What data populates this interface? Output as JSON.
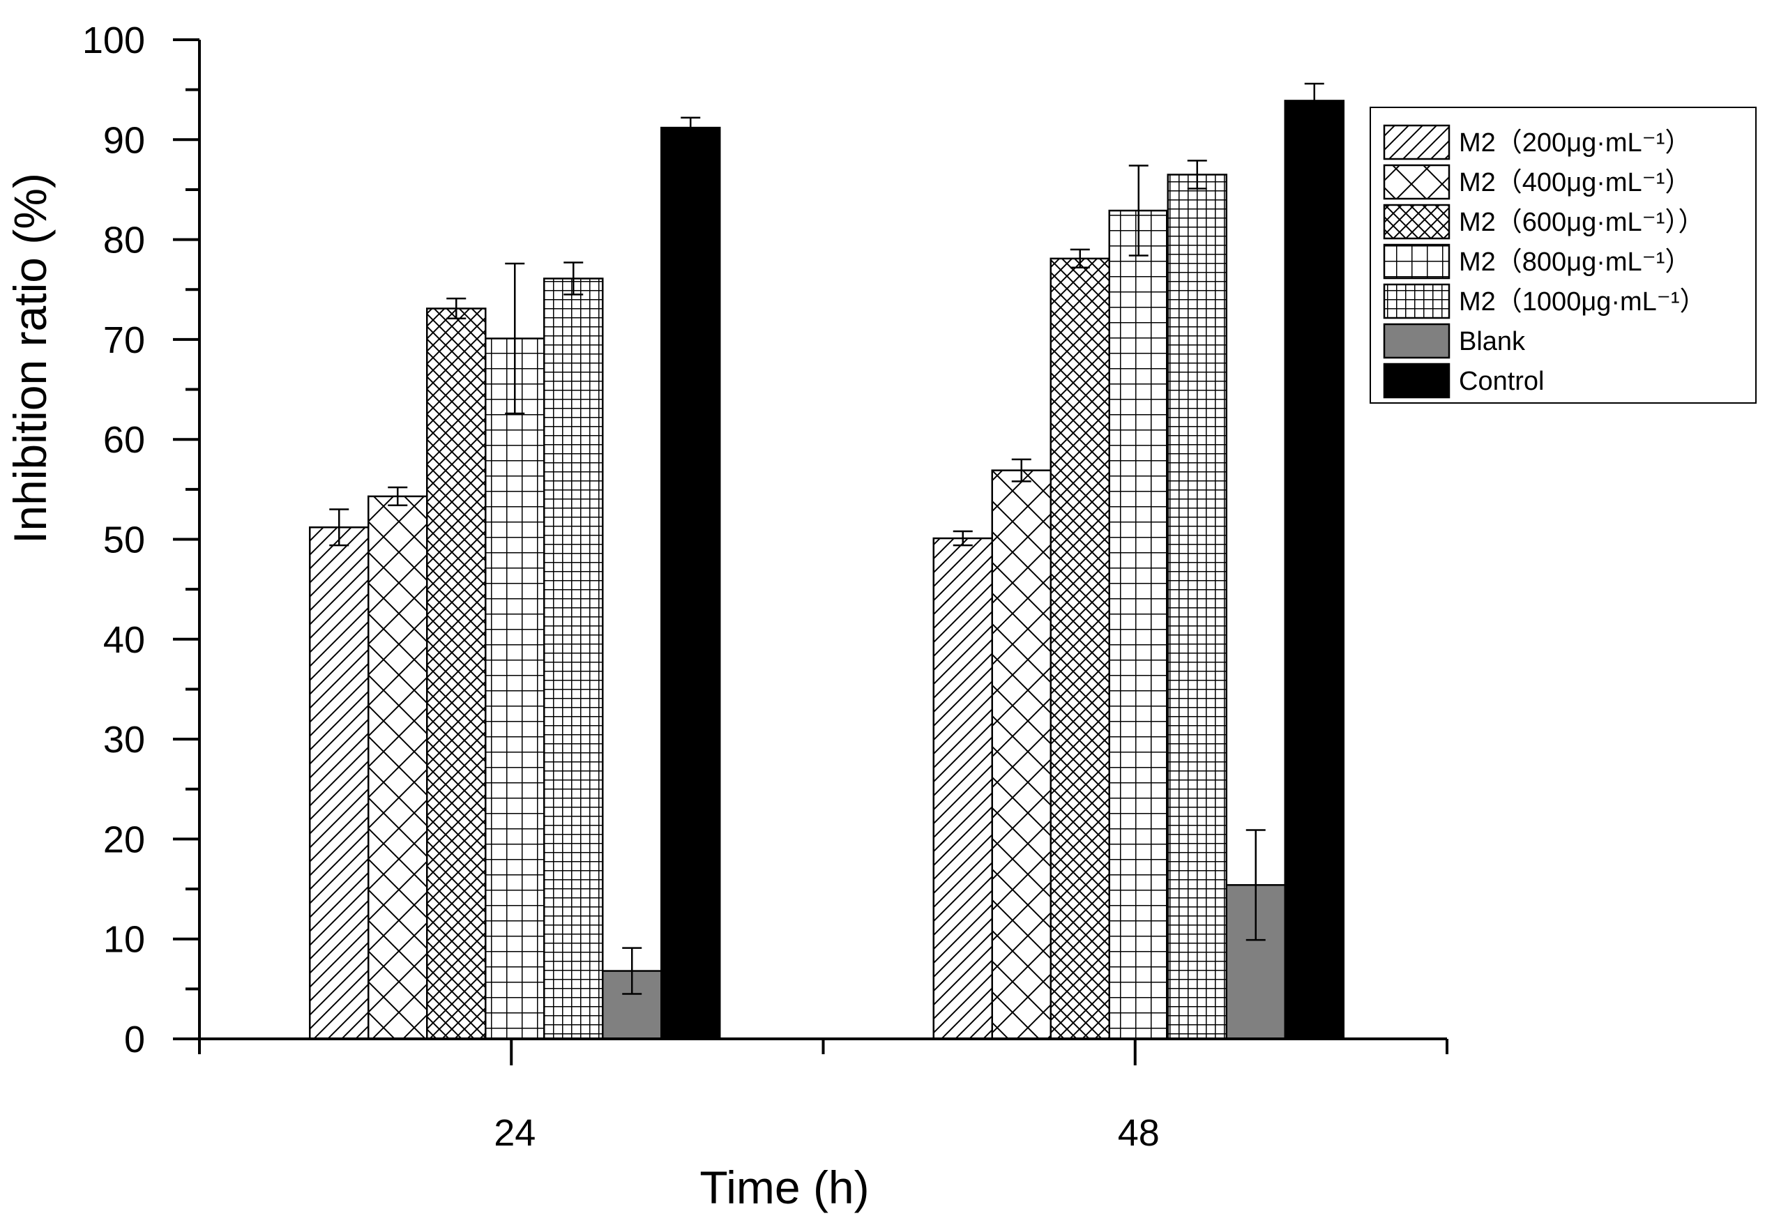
{
  "chart_data": {
    "type": "bar",
    "title": "",
    "xlabel": "Time (h)",
    "ylabel": "Inhibition ratio (%)",
    "ylim": [
      0,
      100
    ],
    "yticks": [
      0,
      10,
      20,
      30,
      40,
      50,
      60,
      70,
      80,
      90,
      100
    ],
    "categories": [
      "24",
      "48"
    ],
    "grid": false,
    "legend_position": "top-right",
    "series": [
      {
        "name": "M2（200μg·mL⁻¹）",
        "pattern": "diagonal-lines",
        "fill": "#ffffff",
        "values": [
          51.2,
          50.1
        ],
        "errors": [
          1.8,
          0.7
        ]
      },
      {
        "name": "M2（400μg·mL⁻¹）",
        "pattern": "large-crosshatch",
        "fill": "#ffffff",
        "values": [
          54.3,
          56.9
        ],
        "errors": [
          0.9,
          1.1
        ]
      },
      {
        "name": "M2（600μg·mL⁻¹））",
        "pattern": "small-crosshatch",
        "fill": "#ffffff",
        "values": [
          73.1,
          78.1
        ],
        "errors": [
          1.0,
          0.9
        ]
      },
      {
        "name": "M2（800μg·mL⁻¹）",
        "pattern": "large-grid",
        "fill": "#ffffff",
        "values": [
          70.1,
          82.9
        ],
        "errors": [
          7.5,
          4.5
        ]
      },
      {
        "name": "M2（1000μg·mL⁻¹）",
        "pattern": "small-grid",
        "fill": "#ffffff",
        "values": [
          76.1,
          86.5
        ],
        "errors": [
          1.6,
          1.4
        ]
      },
      {
        "name": "Blank",
        "pattern": "solid",
        "fill": "#808080",
        "values": [
          6.8,
          15.4
        ],
        "errors": [
          2.3,
          5.5
        ]
      },
      {
        "name": "Control",
        "pattern": "solid",
        "fill": "#000000",
        "values": [
          91.2,
          93.9
        ],
        "errors": [
          1.0,
          1.7
        ]
      }
    ]
  }
}
